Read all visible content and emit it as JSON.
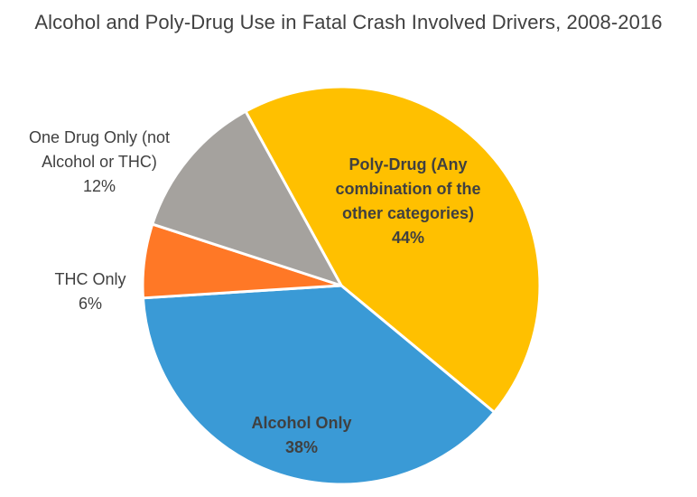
{
  "chart_data": {
    "type": "pie",
    "title": "Alcohol and Poly-Drug Use in Fatal Crash Involved Drivers, 2008-2016",
    "start_angle_deg": -28.8,
    "direction": "clockwise",
    "slices": [
      {
        "label_lines": [
          "Poly-Drug (Any",
          "combination of the",
          "other categories)"
        ],
        "value": 44,
        "value_label": "44%",
        "color": "#FFC000",
        "label_color": "#404040",
        "label_weight": "bold",
        "label_position": "inside"
      },
      {
        "label_lines": [
          "Alcohol Only"
        ],
        "value": 38,
        "value_label": "38%",
        "color": "#3A9AD6",
        "label_color": "#404040",
        "label_weight": "bold",
        "label_position": "inside"
      },
      {
        "label_lines": [
          "THC Only"
        ],
        "value": 6,
        "value_label": "6%",
        "color": "#FF7826",
        "label_color": "#404040",
        "label_weight": "normal",
        "label_position": "outside"
      },
      {
        "label_lines": [
          "One Drug Only (not",
          "Alcohol or THC)"
        ],
        "value": 12,
        "value_label": "12%",
        "color": "#A5A29E",
        "label_color": "#404040",
        "label_weight": "normal",
        "label_position": "outside"
      }
    ]
  }
}
